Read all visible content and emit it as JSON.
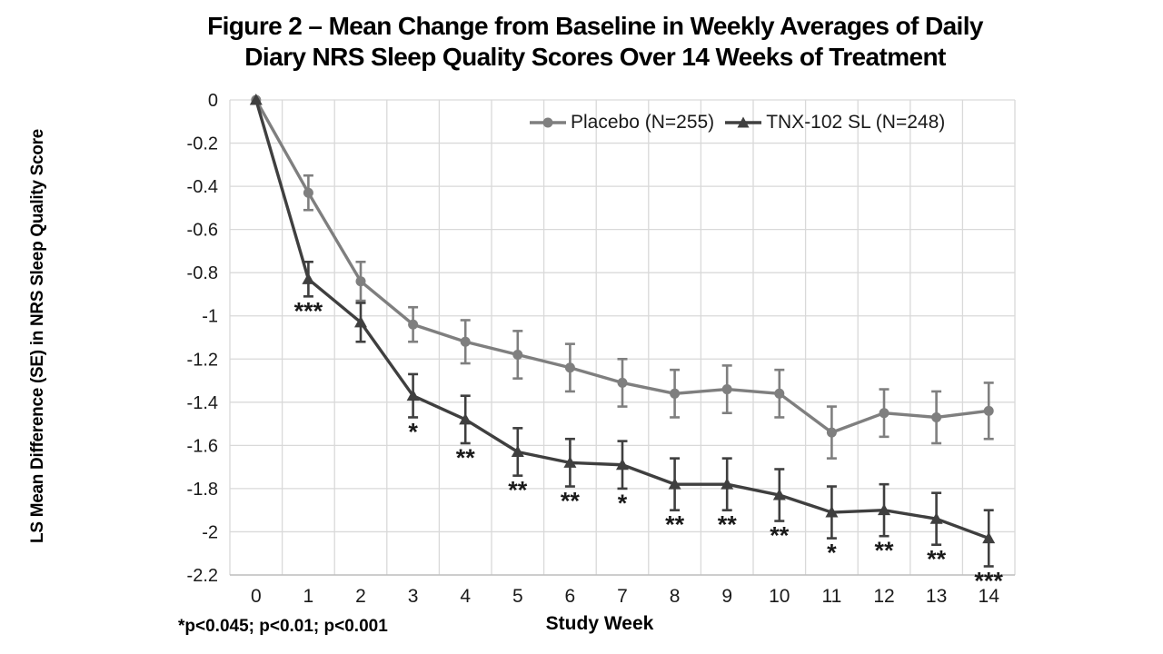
{
  "figure": {
    "title_line1": "Figure 2 – Mean Change from Baseline in Weekly Averages of Daily",
    "title_line2": "Diary NRS Sleep Quality Scores Over 14 Weeks of Treatment",
    "footnote": "*p<0.045; p<0.01; p<0.001"
  },
  "colors": {
    "grid": "#d9d9d9",
    "axis": "#bfbfbf",
    "text": "#1a1a1a",
    "background": "#ffffff"
  },
  "chart_data": {
    "type": "line",
    "title": "Figure 2 – Mean Change from Baseline in Weekly Averages of Daily Diary NRS Sleep Quality Scores Over 14 Weeks of Treatment",
    "xlabel": "Study Week",
    "ylabel": "LS Mean Difference (SE) in NRS Sleep Quality Score",
    "x": [
      0,
      1,
      2,
      3,
      4,
      5,
      6,
      7,
      8,
      9,
      10,
      11,
      12,
      13,
      14
    ],
    "x_tick_labels": [
      "0",
      "1",
      "2",
      "3",
      "4",
      "5",
      "6",
      "7",
      "8",
      "9",
      "10",
      "11",
      "12",
      "13",
      "14"
    ],
    "y_ticks": [
      0,
      -0.2,
      -0.4,
      -0.6,
      -0.8,
      -1.0,
      -1.2,
      -1.4,
      -1.6,
      -1.8,
      -2.0,
      -2.2
    ],
    "y_tick_labels": [
      "0",
      "-0.2",
      "-0.4",
      "-0.6",
      "-0.8",
      "-1",
      "-1.2",
      "-1.4",
      "-1.6",
      "-1.8",
      "-2",
      "-2.2"
    ],
    "ylim": [
      -2.2,
      0
    ],
    "grid": true,
    "legend_position": "top-center-inside",
    "series": [
      {
        "name": "Placebo (N=255)",
        "marker": "circle",
        "color": "#7f7f7f",
        "values": [
          0,
          -0.43,
          -0.84,
          -1.04,
          -1.12,
          -1.18,
          -1.24,
          -1.31,
          -1.36,
          -1.34,
          -1.36,
          -1.54,
          -1.45,
          -1.47,
          -1.44
        ],
        "se": [
          0,
          0.08,
          0.09,
          0.08,
          0.1,
          0.11,
          0.11,
          0.11,
          0.11,
          0.11,
          0.11,
          0.12,
          0.11,
          0.12,
          0.13
        ]
      },
      {
        "name": "TNX-102 SL (N=248)",
        "marker": "triangle",
        "color": "#3f3f3f",
        "values": [
          0,
          -0.83,
          -1.03,
          -1.37,
          -1.48,
          -1.63,
          -1.68,
          -1.69,
          -1.78,
          -1.78,
          -1.83,
          -1.91,
          -1.9,
          -1.94,
          -2.03
        ],
        "se": [
          0,
          0.08,
          0.09,
          0.1,
          0.11,
          0.11,
          0.11,
          0.11,
          0.12,
          0.12,
          0.12,
          0.12,
          0.12,
          0.12,
          0.13
        ]
      }
    ],
    "significance_markers": [
      "",
      "***",
      "",
      "*",
      "**",
      "**",
      "**",
      "*",
      "**",
      "**",
      "**",
      "*",
      "**",
      "**",
      "***"
    ]
  }
}
